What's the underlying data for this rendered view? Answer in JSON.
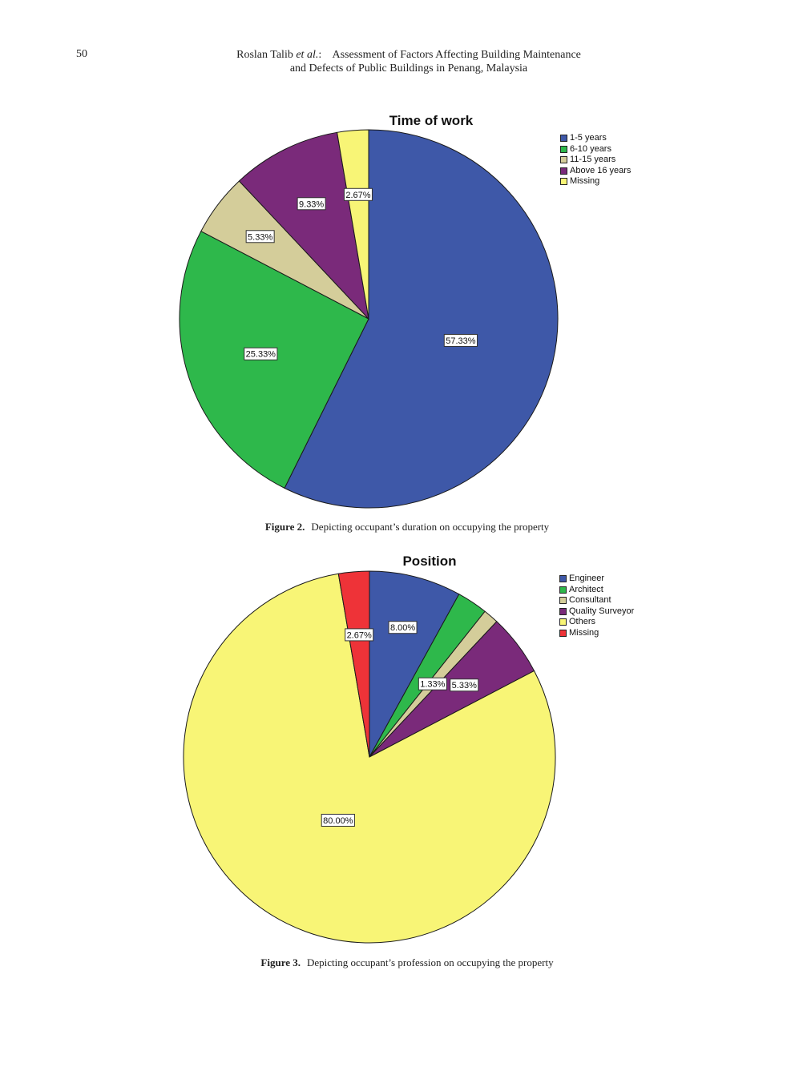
{
  "header": {
    "page_number": "50",
    "authors": "Roslan Talib",
    "et_al": "et al.",
    "title_line1": "Assessment of Factors Affecting Building Maintenance",
    "title_line2": "and Defects of Public Buildings in Penang, Malaysia"
  },
  "figures": [
    {
      "caption_label": "Figure 2.",
      "caption_text": "Depicting occupant’s duration on occupying the property"
    },
    {
      "caption_label": "Figure 3.",
      "caption_text": "Depicting occupant’s profession on occupying the property"
    }
  ],
  "chart_data": [
    {
      "type": "pie",
      "title": "Time of work",
      "start_angle": "12 o'clock",
      "direction": "clockwise",
      "legend_position": "top-right",
      "categories": [
        "1-5 years",
        "6-10 years",
        "11-15 years",
        "Above 16 years",
        "Missing"
      ],
      "values": [
        57.33,
        25.33,
        5.33,
        9.33,
        2.67
      ],
      "labels": [
        "57.33%",
        "25.33%",
        "5.33%",
        "9.33%",
        "2.67%"
      ],
      "colors": [
        "#3e58a8",
        "#2eb84b",
        "#d4cd9a",
        "#7a2a7a",
        "#f8f576"
      ]
    },
    {
      "type": "pie",
      "title": "Position",
      "start_angle": "12 o'clock",
      "direction": "clockwise",
      "legend_position": "top-right",
      "categories": [
        "Engineer",
        "Architect",
        "Consultant",
        "Quality Surveyor",
        "Others",
        "Missing"
      ],
      "values": [
        8.0,
        2.67,
        1.33,
        5.33,
        80.0,
        2.67
      ],
      "labels": [
        "8.00%",
        "",
        "1.33%",
        "5.33%",
        "80.00%",
        "2.67%"
      ],
      "colors": [
        "#3e58a8",
        "#2eb84b",
        "#d4cd9a",
        "#7a2a7a",
        "#f8f576",
        "#ee3338"
      ]
    }
  ]
}
